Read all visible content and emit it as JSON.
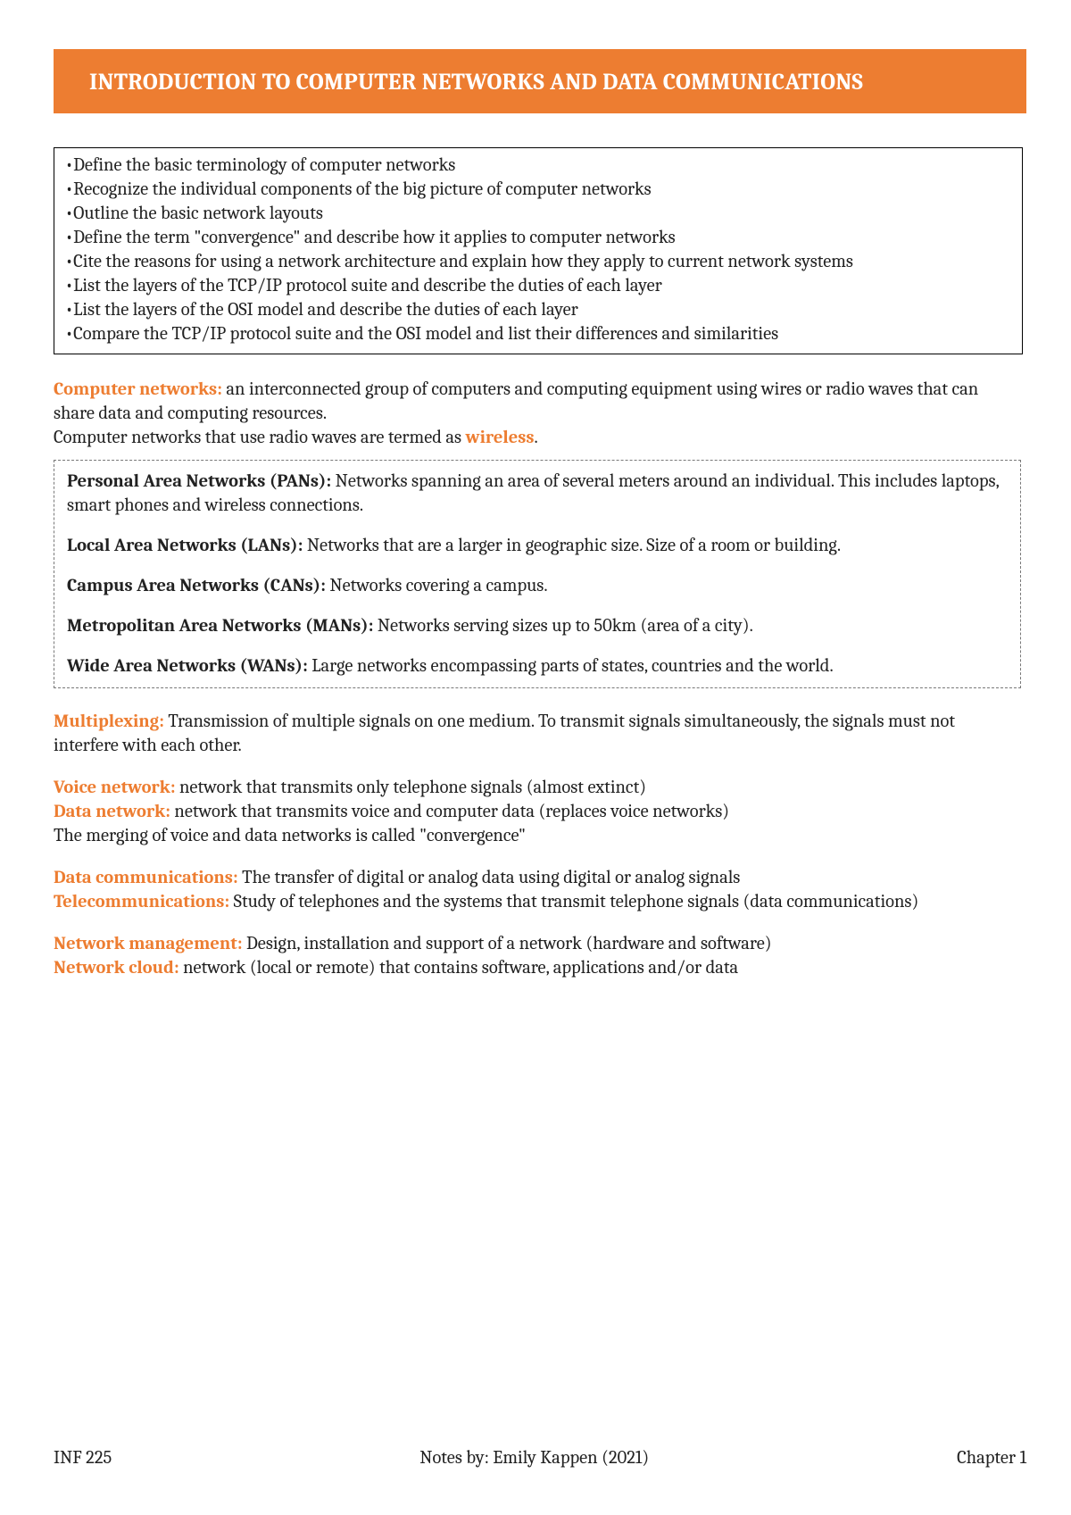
{
  "colors": {
    "accent": "#ed7d31",
    "text": "#222222",
    "background": "#ffffff",
    "box_border": "#000000",
    "dashed_border": "#787878"
  },
  "typography": {
    "body_fontsize_pt": 15,
    "title_fontsize_pt": 20,
    "font_family": "Cambria / serif"
  },
  "header": {
    "title": "INTRODUCTION TO COMPUTER NETWORKS AND DATA COMMUNICATIONS"
  },
  "objectives": [
    "•Define the basic terminology of computer networks",
    "•Recognize the individual components of the big picture of computer networks",
    "•Outline the basic network layouts",
    "•Define the term \"convergence\" and describe how it applies to computer networks",
    "•Cite the reasons for using a network architecture and explain how they apply to current network systems",
    "•List the layers of the TCP/IP protocol suite and describe the duties of each layer",
    "•List the layers of the OSI model and describe the duties of each layer",
    "•Compare the TCP/IP protocol suite and the OSI model and list their differences and similarities"
  ],
  "intro": {
    "term": "Computer networks:",
    "text": " an interconnected group of computers and computing equipment using wires or radio waves that can share data and computing resources.",
    "line2_pre": "Computer networks that use radio waves are termed as ",
    "line2_term": "wireless",
    "line2_post": "."
  },
  "network_types": [
    {
      "name": "Personal Area Networks (PANs):",
      "desc": " Networks spanning an area of several meters around an individual. This includes laptops, smart phones and wireless connections."
    },
    {
      "name": "Local Area Networks (LANs):",
      "desc": " Networks that are a larger in geographic size. Size of a room or building."
    },
    {
      "name": "Campus Area Networks (CANs):",
      "desc": " Networks covering a campus."
    },
    {
      "name": "Metropolitan Area Networks (MANs):",
      "desc": " Networks serving sizes up to 50km (area of a city)."
    },
    {
      "name": "Wide Area Networks (WANs):",
      "desc": " Large networks encompassing parts of states, countries and the world."
    }
  ],
  "multiplexing": {
    "term": "Multiplexing:",
    "text": " Transmission of multiple signals on one medium. To transmit signals simultaneously, the signals must not interfere with each other."
  },
  "voice_data": {
    "voice_term": "Voice network:",
    "voice_text": " network that transmits only telephone signals (almost extinct)",
    "data_term": "Data network:",
    "data_text": " network that transmits voice and computer data (replaces voice networks)",
    "convergence": "The merging of voice and data networks is called \"convergence\""
  },
  "comm": {
    "datacomm_term": "Data communications:",
    "datacomm_text": " The transfer of digital or analog data using digital or analog signals",
    "telecom_term": "Telecommunications:",
    "telecom_text": " Study of telephones and the systems that transmit telephone signals (data communications)"
  },
  "mgmt": {
    "netmgmt_term": "Network management:",
    "netmgmt_text": " Design, installation and support of a network (hardware and software)",
    "cloud_term": "Network cloud:",
    "cloud_text": " network (local or remote) that contains software, applications and/or data"
  },
  "footer": {
    "left": "INF 225",
    "center": "Notes by: Emily Kappen (2021)",
    "right": "Chapter 1"
  }
}
